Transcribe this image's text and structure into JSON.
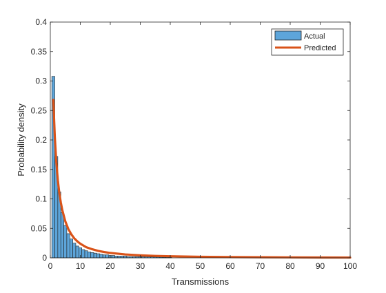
{
  "chart_data": {
    "type": "bar",
    "title": "",
    "xlabel": "Transmissions",
    "ylabel": "Probability density",
    "xlim": [
      0,
      100
    ],
    "ylim": [
      0,
      0.4
    ],
    "xticks": [
      0,
      10,
      20,
      30,
      40,
      50,
      60,
      70,
      80,
      90,
      100
    ],
    "yticks": [
      0,
      0.05,
      0.1,
      0.15,
      0.2,
      0.25,
      0.3,
      0.35,
      0.4
    ],
    "grid": false,
    "legend_position": "top-right",
    "colors": {
      "bar_fill": "#5DA5DA",
      "bar_edge": "#1F1F1F",
      "line": "#D95319",
      "axis": "#262626"
    },
    "series": [
      {
        "name": "Actual",
        "kind": "histogram",
        "bin_width": 1,
        "bins": [
          [
            1,
            0.308
          ],
          [
            2,
            0.172
          ],
          [
            3,
            0.112
          ],
          [
            4,
            0.077
          ],
          [
            5,
            0.055
          ],
          [
            6,
            0.041
          ],
          [
            7,
            0.032
          ],
          [
            8,
            0.025
          ],
          [
            9,
            0.02
          ],
          [
            10,
            0.017
          ],
          [
            11,
            0.014
          ],
          [
            12,
            0.012
          ],
          [
            13,
            0.01
          ],
          [
            14,
            0.009
          ],
          [
            15,
            0.008
          ],
          [
            16,
            0.007
          ],
          [
            17,
            0.006
          ],
          [
            18,
            0.005
          ],
          [
            19,
            0.005
          ],
          [
            20,
            0.004
          ],
          [
            21,
            0.004
          ],
          [
            22,
            0.003
          ],
          [
            23,
            0.003
          ],
          [
            24,
            0.003
          ],
          [
            25,
            0.003
          ],
          [
            26,
            0.002
          ],
          [
            27,
            0.002
          ],
          [
            28,
            0.002
          ],
          [
            29,
            0.002
          ],
          [
            30,
            0.002
          ],
          [
            31,
            0.0018
          ],
          [
            32,
            0.0017
          ],
          [
            33,
            0.0016
          ],
          [
            34,
            0.0015
          ],
          [
            35,
            0.0014
          ],
          [
            36,
            0.0013
          ],
          [
            37,
            0.0012
          ],
          [
            38,
            0.0011
          ],
          [
            39,
            0.0011
          ],
          [
            40,
            0.001
          ]
        ]
      },
      {
        "name": "Predicted",
        "kind": "line",
        "points": [
          [
            1,
            0.268
          ],
          [
            1.5,
            0.205
          ],
          [
            2,
            0.162
          ],
          [
            2.5,
            0.132
          ],
          [
            3,
            0.11
          ],
          [
            3.5,
            0.094
          ],
          [
            4,
            0.081
          ],
          [
            5,
            0.062
          ],
          [
            6,
            0.049
          ],
          [
            7,
            0.04
          ],
          [
            8,
            0.033
          ],
          [
            9,
            0.028
          ],
          [
            10,
            0.024
          ],
          [
            12,
            0.018
          ],
          [
            14,
            0.0145
          ],
          [
            16,
            0.0118
          ],
          [
            18,
            0.0098
          ],
          [
            20,
            0.0083
          ],
          [
            25,
            0.0058
          ],
          [
            30,
            0.0043
          ],
          [
            35,
            0.0033
          ],
          [
            40,
            0.0027
          ],
          [
            50,
            0.0018
          ],
          [
            60,
            0.0013
          ],
          [
            70,
            0.001
          ],
          [
            80,
            0.0008
          ],
          [
            90,
            0.0006
          ],
          [
            100,
            0.0005
          ]
        ]
      }
    ]
  }
}
